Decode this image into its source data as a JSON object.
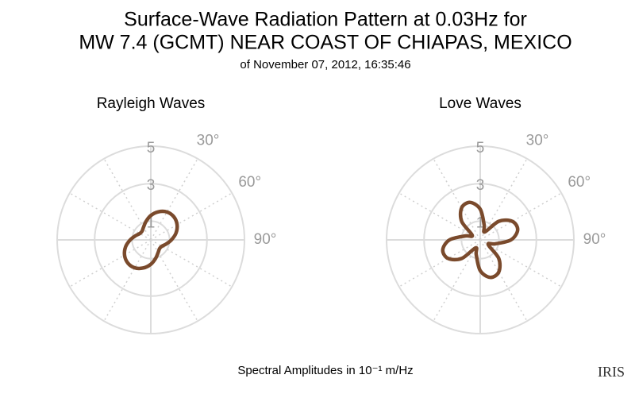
{
  "header": {
    "title": [
      "Surface-Wave Radiation Pattern at 0.03Hz for",
      "MW 7.4 (GCMT) NEAR COAST OF CHIAPAS, MEXICO"
    ],
    "subtitle": "of November 07, 2012, 16:35:46"
  },
  "chart_data": [
    {
      "type": "polar",
      "title": "Rayleigh Waves",
      "color": "#7a4a2c",
      "theta": [
        0,
        15,
        30,
        45,
        60,
        75,
        90,
        105,
        120,
        135,
        150,
        165,
        180,
        195,
        210,
        225,
        240,
        255,
        270,
        285,
        300,
        315,
        330,
        345
      ],
      "values": [
        1.3,
        1.55,
        1.72,
        1.74,
        1.62,
        1.39,
        1.1,
        0.85,
        0.68,
        0.66,
        0.78,
        1.01,
        1.3,
        1.55,
        1.72,
        1.74,
        1.62,
        1.39,
        1.1,
        0.85,
        0.68,
        0.66,
        0.78,
        1.01
      ],
      "ylim": [
        0,
        5
      ],
      "yticks": [
        1,
        3,
        5
      ],
      "thetaticks": [
        {
          "value": 30,
          "label": "30°"
        },
        {
          "value": 60,
          "label": "60°"
        },
        {
          "value": 90,
          "label": "90°"
        }
      ]
    },
    {
      "type": "polar",
      "title": "Love Waves",
      "color": "#7a4a2c",
      "theta": [
        0,
        15,
        30,
        45,
        60,
        75,
        90,
        105,
        120,
        135,
        150,
        165,
        180,
        195,
        210,
        225,
        240,
        255,
        270,
        285,
        300,
        315,
        330,
        345
      ],
      "values": [
        1.64,
        0.82,
        0.49,
        1.4,
        1.98,
        2.07,
        1.64,
        0.82,
        0.49,
        1.4,
        1.98,
        2.07,
        1.64,
        0.82,
        0.49,
        1.4,
        1.98,
        2.07,
        1.64,
        0.82,
        0.49,
        1.4,
        1.98,
        2.07
      ],
      "ylim": [
        0,
        5
      ],
      "yticks": [
        1,
        3,
        5
      ],
      "thetaticks": [
        {
          "value": 30,
          "label": "30°"
        },
        {
          "value": 60,
          "label": "60°"
        },
        {
          "value": 90,
          "label": "90°"
        }
      ]
    }
  ],
  "footer": "Spectral Amplitudes in 10⁻¹ m/Hz",
  "logo": "IRIS"
}
